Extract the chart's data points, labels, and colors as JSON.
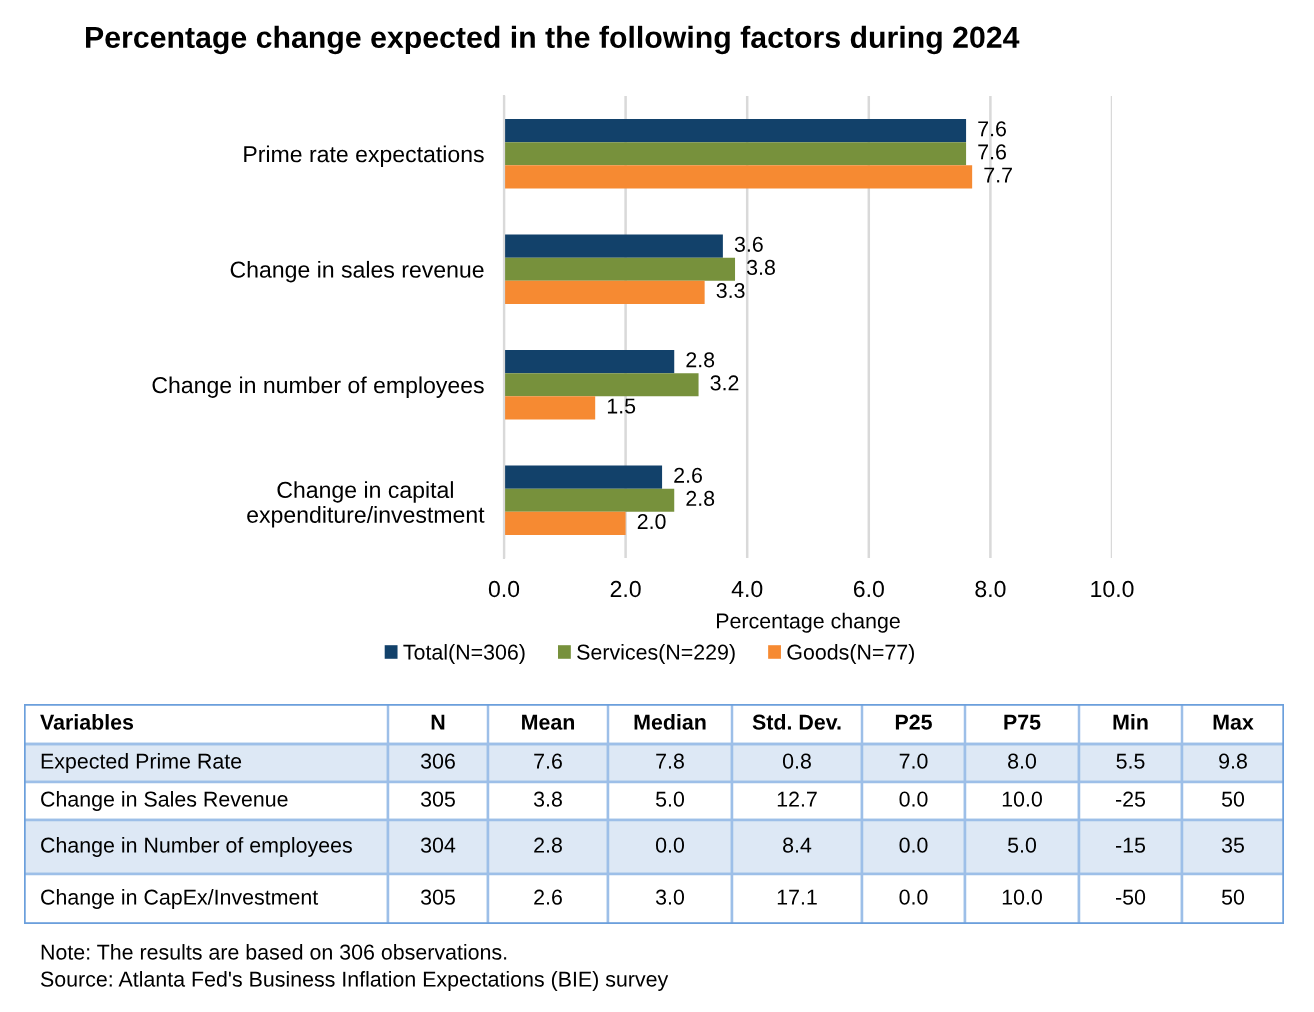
{
  "chart_data": [
    {
      "type": "bar",
      "title": "Percentage change expected in the following factors during 2024",
      "orientation": "horizontal",
      "categories": [
        "Prime rate expectations",
        "Change in sales revenue",
        "Change in number of employees",
        "Change in capital\nexpenditure/investment"
      ],
      "series": [
        {
          "name": "Total(N=306)",
          "color": "#12416a",
          "values": [
            7.6,
            3.6,
            2.8,
            2.6
          ],
          "value_labels": [
            "7.6",
            "3.6",
            "2.8",
            "2.6"
          ]
        },
        {
          "name": "Services(N=229)",
          "color": "#77913c",
          "values": [
            7.6,
            3.8,
            3.2,
            2.8
          ],
          "value_labels": [
            "7.6",
            "3.8",
            "3.2",
            "2.8"
          ]
        },
        {
          "name": "Goods(N=77)",
          "color": "#f68a32",
          "values": [
            7.7,
            3.3,
            1.5,
            2.0
          ],
          "value_labels": [
            "7.7",
            "3.3",
            "1.5",
            "2.0"
          ]
        }
      ],
      "xlabel": "Percentage change",
      "xlim": [
        0,
        10
      ],
      "xticks": [
        {
          "value": 0,
          "label": "0.0"
        },
        {
          "value": 2,
          "label": "2.0"
        },
        {
          "value": 4,
          "label": "4.0"
        },
        {
          "value": 6,
          "label": "6.0"
        },
        {
          "value": 8,
          "label": "8.0"
        },
        {
          "value": 10,
          "label": "10.0"
        }
      ],
      "grid": "x",
      "legend": "bottom"
    },
    {
      "type": "heatmap",
      "ylabel": "Variables",
      "categories": [
        "N",
        "Mean",
        "Median",
        "Std. Dev.",
        "P25",
        "P75",
        "Min",
        "Max"
      ],
      "y_categories": [
        "Expected Prime Rate",
        "Change in Sales Revenue",
        "Change in Number of employees",
        "Change in CapEx/Investment"
      ],
      "cells": [
        [
          306,
          7.6,
          7.8,
          0.8,
          7.0,
          8.0,
          5.5,
          9.8
        ],
        [
          305,
          3.8,
          5.0,
          12.7,
          0.0,
          10.0,
          -25,
          50
        ],
        [
          304,
          2.8,
          0.0,
          8.4,
          0.0,
          5.0,
          -15,
          35
        ],
        [
          305,
          2.6,
          3.0,
          17.1,
          0.0,
          10.0,
          -50,
          50
        ]
      ],
      "cell_labels": [
        [
          "306",
          "7.6",
          "7.8",
          "0.8",
          "7.0",
          "8.0",
          "5.5",
          "9.8"
        ],
        [
          "305",
          "3.8",
          "5.0",
          "12.7",
          "0.0",
          "10.0",
          "-25",
          "50"
        ],
        [
          "304",
          "2.8",
          "0.0",
          "8.4",
          "0.0",
          "5.0",
          "-15",
          "35"
        ],
        [
          "305",
          "2.6",
          "3.0",
          "17.1",
          "0.0",
          "10.0",
          "-50",
          "50"
        ]
      ],
      "annotations": [
        "Note: The results are based on 306 observations.",
        "Source: Atlanta Fed's Business Inflation Expectations (BIE) survey"
      ]
    }
  ]
}
